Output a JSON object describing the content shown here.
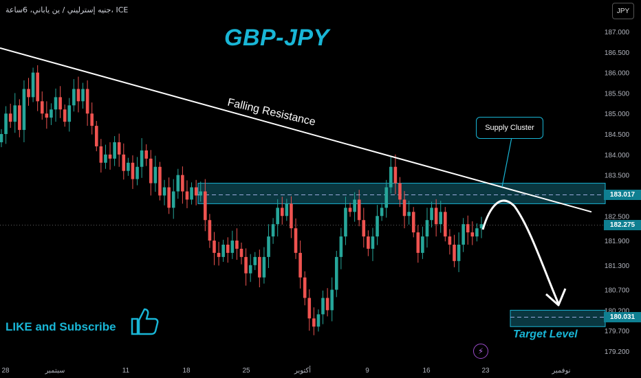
{
  "header": {
    "instrument": "جنيه إسترليني / ين ياباني، 6ساعة، ICE",
    "currency_button": "JPY"
  },
  "title": "GBP-JPY",
  "annotations": {
    "trendline_label": "Falling Resistance",
    "supply_label": "Supply Cluster",
    "target_label": "Target Level",
    "cta": "LIKE and Subscribe"
  },
  "price_tags": {
    "zone_level": "183.017",
    "last_price": "182.275",
    "target_level": "180.031"
  },
  "icons": {
    "thumbs_up": "thumbs-up-icon",
    "bolt": "lightning-icon"
  },
  "colors": {
    "accent": "#19b6d6",
    "up": "#26a69a",
    "down": "#ef5350",
    "zone_fill": "#0e4a55"
  },
  "chart_data": {
    "type": "candlestick",
    "title": "GBP-JPY",
    "timeframe": "6h",
    "ylim": [
      179.0,
      187.25
    ],
    "y_ticks": [
      "187.000",
      "186.500",
      "186.000",
      "185.500",
      "185.000",
      "184.500",
      "184.000",
      "183.500",
      "182.500",
      "181.900",
      "181.300",
      "180.700",
      "180.200",
      "179.700",
      "179.200"
    ],
    "x_ticks": [
      "28",
      "سبتمبر",
      "11",
      "18",
      "25",
      "أكتوبر",
      "9",
      "16",
      "23",
      "نوفمبر"
    ],
    "supply_zone": [
      182.8,
      183.3
    ],
    "target_zone": [
      179.8,
      180.2
    ],
    "zone_mid_level": 183.017,
    "last_price": 182.275,
    "target_level": 180.031,
    "trendline": {
      "label": "Falling Resistance",
      "from_price": 186.6,
      "to_price": 182.6
    },
    "close_path": [
      184.5,
      185.0,
      184.8,
      185.2,
      184.6,
      185.6,
      185.4,
      186.0,
      185.3,
      185.0,
      184.9,
      185.1,
      185.4,
      185.1,
      184.8,
      185.2,
      185.6,
      185.3,
      185.6,
      185.0,
      184.7,
      184.2,
      183.8,
      184.0,
      183.9,
      184.3,
      184.0,
      183.6,
      183.8,
      183.4,
      183.7,
      184.1,
      183.9,
      183.3,
      183.7,
      183.0,
      183.2,
      182.7,
      183.1,
      183.5,
      183.1,
      182.9,
      183.2,
      183.0,
      183.1,
      182.4,
      181.9,
      181.6,
      181.5,
      181.8,
      181.6,
      181.9,
      181.7,
      181.5,
      181.1,
      181.3,
      181.5,
      181.0,
      181.5,
      182.0,
      182.3,
      182.7,
      182.5,
      182.8,
      182.2,
      181.6,
      181.0,
      180.5,
      180.0,
      179.8,
      180.1,
      180.5,
      180.2,
      180.7,
      181.5,
      182.0,
      182.7,
      182.6,
      182.9,
      182.4,
      182.0,
      181.7,
      182.0,
      182.5,
      182.7,
      183.2,
      183.7,
      183.3,
      182.9,
      182.5,
      182.6,
      182.1,
      181.6,
      182.0,
      182.4,
      182.7,
      182.3,
      182.6,
      182.0,
      181.8,
      181.4,
      181.8,
      182.3,
      182.1,
      182.0,
      182.2,
      182.3
    ]
  }
}
